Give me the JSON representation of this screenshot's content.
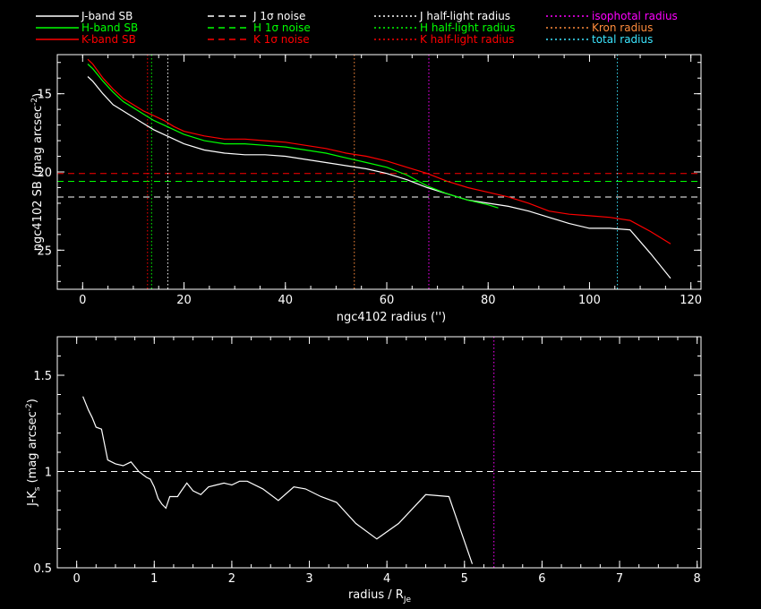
{
  "legend": [
    {
      "label": "J-band SB",
      "color": "#ffffff",
      "dash": "solid"
    },
    {
      "label": "H-band SB",
      "color": "#00ff00",
      "dash": "solid"
    },
    {
      "label": "K-band SB",
      "color": "#ff0000",
      "dash": "solid"
    },
    {
      "label": "J 1σ noise",
      "color": "#ffffff",
      "dash": "dashed"
    },
    {
      "label": "H 1σ noise",
      "color": "#00ff00",
      "dash": "dashed"
    },
    {
      "label": "K 1σ noise",
      "color": "#ff0000",
      "dash": "dashed"
    },
    {
      "label": "J half-light radius",
      "color": "#ffffff",
      "dash": "dotted"
    },
    {
      "label": "H half-light radius",
      "color": "#00ff00",
      "dash": "dotted"
    },
    {
      "label": "K half-light radius",
      "color": "#ff0000",
      "dash": "dotted"
    },
    {
      "label": "isophotal radius",
      "color": "#ff00ff",
      "dash": "dotted"
    },
    {
      "label": "Kron radius",
      "color": "#ff8c3c",
      "dash": "dotted"
    },
    {
      "label": "total radius",
      "color": "#3ce6ff",
      "dash": "dotted"
    }
  ],
  "chart_data": [
    {
      "type": "line",
      "xlabel": "ngc4102 radius ('')",
      "ylabel": "ngc4102 SB (mag arcsec",
      "ylabel_sup": "-2",
      "ylabel_end": ")",
      "xlim": [
        -5,
        122
      ],
      "ylim": [
        27.5,
        12.5
      ],
      "xticks": [
        "0",
        "20",
        "40",
        "60",
        "80",
        "100",
        "120"
      ],
      "yticks": [
        "15",
        "20",
        "25"
      ],
      "series": [
        {
          "name": "J-band SB",
          "color": "#ffffff",
          "x": [
            1,
            2,
            4,
            6,
            8,
            10,
            12,
            14,
            16,
            18,
            20,
            24,
            28,
            32,
            36,
            40,
            44,
            48,
            52,
            56,
            60,
            64,
            68,
            72,
            76,
            80,
            84,
            88,
            92,
            96,
            100,
            104,
            108,
            112,
            116
          ],
          "y": [
            13.9,
            14.2,
            15.0,
            15.7,
            16.1,
            16.5,
            16.9,
            17.3,
            17.6,
            17.9,
            18.2,
            18.6,
            18.8,
            18.9,
            18.9,
            19.0,
            19.2,
            19.4,
            19.6,
            19.8,
            20.1,
            20.5,
            21.0,
            21.4,
            21.8,
            22.0,
            22.2,
            22.5,
            22.9,
            23.3,
            23.6,
            23.6,
            23.7,
            25.2,
            26.8
          ]
        },
        {
          "name": "H-band SB",
          "color": "#00ff00",
          "x": [
            1,
            2,
            4,
            6,
            8,
            10,
            12,
            14,
            16,
            18,
            20,
            24,
            28,
            32,
            36,
            40,
            44,
            48,
            52,
            56,
            60,
            64,
            68,
            72,
            76,
            80,
            82
          ],
          "y": [
            13.1,
            13.4,
            14.2,
            14.9,
            15.5,
            15.9,
            16.3,
            16.7,
            17.0,
            17.3,
            17.6,
            18.0,
            18.2,
            18.2,
            18.3,
            18.4,
            18.6,
            18.8,
            19.1,
            19.4,
            19.7,
            20.2,
            20.9,
            21.4,
            21.8,
            22.1,
            22.3
          ]
        },
        {
          "name": "K-band SB",
          "color": "#ff0000",
          "x": [
            1,
            2,
            4,
            6,
            8,
            10,
            12,
            14,
            16,
            18,
            20,
            24,
            28,
            32,
            36,
            40,
            44,
            48,
            52,
            56,
            60,
            64,
            68,
            72,
            76,
            80,
            84,
            88,
            92,
            96,
            100,
            104,
            108,
            112,
            116
          ],
          "y": [
            12.8,
            13.1,
            14.0,
            14.7,
            15.3,
            15.7,
            16.1,
            16.4,
            16.7,
            17.1,
            17.4,
            17.7,
            17.9,
            17.9,
            18.0,
            18.1,
            18.3,
            18.5,
            18.8,
            19.0,
            19.3,
            19.7,
            20.1,
            20.6,
            21.0,
            21.3,
            21.6,
            22.0,
            22.5,
            22.7,
            22.8,
            22.9,
            23.1,
            23.8,
            24.6
          ]
        }
      ],
      "hlines": [
        {
          "name": "J 1σ noise",
          "y": 21.6,
          "color": "#ffffff"
        },
        {
          "name": "H 1σ noise",
          "y": 20.6,
          "color": "#00ff00"
        },
        {
          "name": "K 1σ noise",
          "y": 20.1,
          "color": "#ff0000"
        }
      ],
      "vlines": [
        {
          "name": "J half-light radius",
          "x": 16.8,
          "color": "#ffffff"
        },
        {
          "name": "H half-light radius",
          "x": 13.6,
          "color": "#00ff00"
        },
        {
          "name": "K half-light radius",
          "x": 12.8,
          "color": "#ff0000"
        },
        {
          "name": "isophotal radius",
          "x": 68.3,
          "color": "#ff00ff"
        },
        {
          "name": "Kron radius",
          "x": 53.6,
          "color": "#ff8c3c"
        },
        {
          "name": "total radius",
          "x": 105.5,
          "color": "#3ce6ff"
        }
      ]
    },
    {
      "type": "line",
      "xlabel": "radius / R",
      "xlabel_sub": "Je",
      "ylabel": "J-K",
      "ylabel_sub": "s",
      "ylabel_mid": " (mag arcsec",
      "ylabel_sup": "-2",
      "ylabel_end": ")",
      "xlim": [
        -0.25,
        8.05
      ],
      "ylim": [
        0.5,
        1.7
      ],
      "xticks": [
        "0",
        "1",
        "2",
        "3",
        "4",
        "5",
        "6",
        "7",
        "8"
      ],
      "yticks": [
        "0.5",
        "1",
        "1.5"
      ],
      "series": [
        {
          "name": "",
          "color": "#ffffff",
          "x": [
            0.08,
            0.15,
            0.2,
            0.25,
            0.32,
            0.4,
            0.5,
            0.6,
            0.7,
            0.8,
            0.9,
            0.95,
            1.0,
            1.05,
            1.1,
            1.15,
            1.2,
            1.3,
            1.35,
            1.42,
            1.5,
            1.6,
            1.7,
            1.8,
            1.9,
            2.0,
            2.1,
            2.2,
            2.4,
            2.6,
            2.8,
            2.95,
            3.15,
            3.35,
            3.6,
            3.87,
            4.15,
            4.5,
            4.8,
            5.1
          ],
          "y": [
            1.39,
            1.32,
            1.28,
            1.23,
            1.22,
            1.06,
            1.04,
            1.03,
            1.05,
            1.0,
            0.97,
            0.96,
            0.92,
            0.86,
            0.83,
            0.81,
            0.87,
            0.87,
            0.9,
            0.94,
            0.9,
            0.88,
            0.92,
            0.93,
            0.94,
            0.93,
            0.95,
            0.95,
            0.91,
            0.85,
            0.92,
            0.91,
            0.87,
            0.84,
            0.73,
            0.65,
            0.73,
            0.88,
            0.87,
            0.52
          ]
        }
      ],
      "hlines": [
        {
          "name": "",
          "y": 1.0,
          "color": "#ffffff"
        }
      ],
      "vlines": [
        {
          "name": "isophotal radius",
          "x": 5.38,
          "color": "#ff00ff"
        }
      ]
    }
  ]
}
